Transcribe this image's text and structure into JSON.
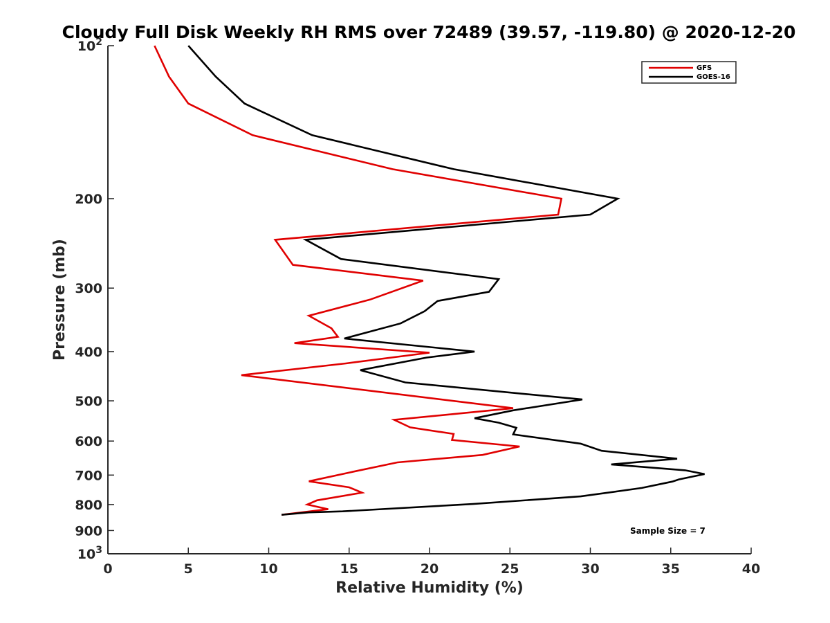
{
  "chart_data": {
    "type": "line",
    "title": "Cloudy Full Disk Weekly RH RMS over 72489 (39.57, -119.80) @ 2020-12-20",
    "xlabel": "Relative Humidity (%)",
    "ylabel": "Pressure (mb)",
    "xlim": [
      0,
      40
    ],
    "ylim": [
      100,
      1000
    ],
    "yscale": "log",
    "y_reversed": true,
    "grid": false,
    "legend_position": "top-right",
    "x_ticks": [
      0,
      5,
      10,
      15,
      20,
      25,
      30,
      35,
      40
    ],
    "x_tick_labels": [
      "0",
      "5",
      "10",
      "15",
      "20",
      "25",
      "30",
      "35",
      "40"
    ],
    "y_ticks": [
      100,
      200,
      300,
      400,
      500,
      600,
      700,
      800,
      900,
      1000
    ],
    "y_tick_labels": [
      "10²",
      "200",
      "300",
      "400",
      "500",
      "600",
      "700",
      "800",
      "900",
      "10³"
    ],
    "annotation": "Sample Size = 7",
    "series": [
      {
        "name": "GFS",
        "color": "#e00000",
        "x": [
          2.9,
          3.8,
          5.0,
          9.0,
          17.7,
          28.2,
          28.0,
          10.4,
          11.5,
          19.6,
          16.3,
          12.5,
          13.9,
          14.3,
          11.6,
          20.0,
          14.8,
          8.3,
          25.2,
          17.8,
          18.8,
          21.5,
          21.4,
          25.6,
          23.3,
          18.0,
          15.2,
          12.5,
          15.0,
          15.8,
          13.0,
          12.4,
          13.7,
          10.8
        ],
        "y": [
          100,
          115,
          130,
          150,
          175,
          200,
          215,
          241,
          270,
          290,
          316,
          340,
          360,
          374,
          385,
          402,
          422,
          445,
          517,
          545,
          564,
          581,
          597,
          615,
          639,
          661,
          690,
          720,
          740,
          758,
          785,
          800,
          817,
          838
        ]
      },
      {
        "name": "GOES-16",
        "color": "#000000",
        "x": [
          5.0,
          6.7,
          8.5,
          12.7,
          21.5,
          31.7,
          30.0,
          12.3,
          14.5,
          24.3,
          23.7,
          20.5,
          19.7,
          18.2,
          14.7,
          22.8,
          19.8,
          15.7,
          18.5,
          29.5,
          25.2,
          22.8,
          24.3,
          25.4,
          25.2,
          29.4,
          30.7,
          35.4,
          31.3,
          35.9,
          37.1,
          35.5,
          35.1,
          33.2,
          29.4,
          22.7,
          14.6,
          12.5,
          10.8
        ],
        "y": [
          100,
          115,
          130,
          150,
          175,
          200,
          215,
          241,
          263,
          288,
          305,
          318,
          333,
          352,
          377,
          400,
          411,
          435,
          460,
          497,
          522,
          541,
          552,
          565,
          582,
          607,
          627,
          650,
          667,
          685,
          697,
          714,
          721,
          742,
          771,
          798,
          825,
          829,
          838
        ]
      }
    ]
  }
}
